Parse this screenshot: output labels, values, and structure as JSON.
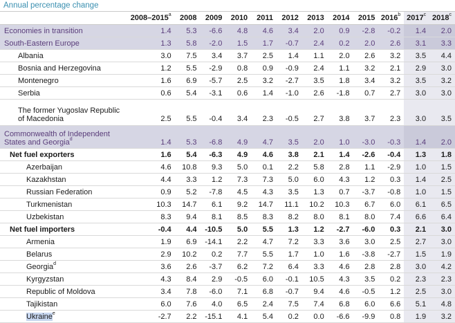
{
  "caption": "Annual percentage change",
  "headers": [
    "2008–2015",
    "2008",
    "2009",
    "2010",
    "2011",
    "2012",
    "2013",
    "2014",
    "2015",
    "2016",
    "2017",
    "2018"
  ],
  "header_notes": [
    "a",
    "",
    "",
    "",
    "",
    "",
    "",
    "",
    "",
    "b",
    "c",
    "c"
  ],
  "rows": [
    {
      "label": "Economies in transition",
      "note": "",
      "kind": "grp",
      "values": [
        "1.4",
        "5.3",
        "-6.6",
        "4.8",
        "4.6",
        "3.4",
        "2.0",
        "0.9",
        "-2.8",
        "-0.2",
        "1.4",
        "2.0"
      ]
    },
    {
      "label": "South-Eastern Europe",
      "note": "",
      "kind": "grp",
      "values": [
        "1.3",
        "5.8",
        "-2.0",
        "1.5",
        "1.7",
        "-0.7",
        "2.4",
        "0.2",
        "2.0",
        "2.6",
        "3.1",
        "3.3"
      ]
    },
    {
      "label": "Albania",
      "note": "",
      "kind": "item",
      "values": [
        "3.0",
        "7.5",
        "3.4",
        "3.7",
        "2.5",
        "1.4",
        "1.1",
        "2.0",
        "2.6",
        "3.2",
        "3.5",
        "4.4"
      ]
    },
    {
      "label": "Bosnia and Herzegovina",
      "note": "",
      "kind": "item",
      "values": [
        "1.2",
        "5.5",
        "-2.9",
        "0.8",
        "0.9",
        "-0.9",
        "2.4",
        "1.1",
        "3.2",
        "2.1",
        "2.9",
        "3.0"
      ]
    },
    {
      "label": "Montenegro",
      "note": "",
      "kind": "item",
      "values": [
        "1.6",
        "6.9",
        "-5.7",
        "2.5",
        "3.2",
        "-2.7",
        "3.5",
        "1.8",
        "3.4",
        "3.2",
        "3.5",
        "3.2"
      ]
    },
    {
      "label": "Serbia",
      "note": "",
      "kind": "item",
      "values": [
        "0.6",
        "5.4",
        "-3.1",
        "0.6",
        "1.4",
        "-1.0",
        "2.6",
        "-1.8",
        "0.7",
        "2.7",
        "3.0",
        "3.0"
      ]
    },
    {
      "label": "The former Yugoslav Republic",
      "label2": "of Macedonia",
      "note": "",
      "kind": "item-tall",
      "values": [
        "2.5",
        "5.5",
        "-0.4",
        "3.4",
        "2.3",
        "-0.5",
        "2.7",
        "3.8",
        "3.7",
        "2.3",
        "3.0",
        "3.5"
      ]
    },
    {
      "label": "Commonwealth of Independent",
      "label2": "States and Georgia",
      "note": "d",
      "kind": "grp-tall",
      "values": [
        "1.4",
        "5.3",
        "-6.8",
        "4.9",
        "4.7",
        "3.5",
        "2.0",
        "1.0",
        "-3.0",
        "-0.3",
        "1.4",
        "2.0"
      ]
    },
    {
      "label": "Net fuel exporters",
      "note": "",
      "kind": "bold",
      "values": [
        "1.6",
        "5.4",
        "-6.3",
        "4.9",
        "4.6",
        "3.8",
        "2.1",
        "1.4",
        "-2.6",
        "-0.4",
        "1.3",
        "1.8"
      ]
    },
    {
      "label": "Azerbaijan",
      "note": "",
      "kind": "sub",
      "values": [
        "4.6",
        "10.8",
        "9.3",
        "5.0",
        "0.1",
        "2.2",
        "5.8",
        "2.8",
        "1.1",
        "-2.9",
        "1.0",
        "1.5"
      ]
    },
    {
      "label": "Kazakhstan",
      "note": "",
      "kind": "sub",
      "values": [
        "4.4",
        "3.3",
        "1.2",
        "7.3",
        "7.3",
        "5.0",
        "6.0",
        "4.3",
        "1.2",
        "0.3",
        "1.4",
        "2.5"
      ]
    },
    {
      "label": "Russian Federation",
      "note": "",
      "kind": "sub",
      "values": [
        "0.9",
        "5.2",
        "-7.8",
        "4.5",
        "4.3",
        "3.5",
        "1.3",
        "0.7",
        "-3.7",
        "-0.8",
        "1.0",
        "1.5"
      ]
    },
    {
      "label": "Turkmenistan",
      "note": "",
      "kind": "sub",
      "values": [
        "10.3",
        "14.7",
        "6.1",
        "9.2",
        "14.7",
        "11.1",
        "10.2",
        "10.3",
        "6.7",
        "6.0",
        "6.1",
        "6.5"
      ]
    },
    {
      "label": "Uzbekistan",
      "note": "",
      "kind": "sub",
      "values": [
        "8.3",
        "9.4",
        "8.1",
        "8.5",
        "8.3",
        "8.2",
        "8.0",
        "8.1",
        "8.0",
        "7.4",
        "6.6",
        "6.4"
      ]
    },
    {
      "label": "Net fuel importers",
      "note": "",
      "kind": "bold",
      "values": [
        "-0.4",
        "4.4",
        "-10.5",
        "5.0",
        "5.5",
        "1.3",
        "1.2",
        "-2.7",
        "-6.0",
        "0.3",
        "2.1",
        "3.0"
      ]
    },
    {
      "label": "Armenia",
      "note": "",
      "kind": "sub",
      "values": [
        "1.9",
        "6.9",
        "-14.1",
        "2.2",
        "4.7",
        "7.2",
        "3.3",
        "3.6",
        "3.0",
        "2.5",
        "2.7",
        "3.0"
      ]
    },
    {
      "label": "Belarus",
      "note": "",
      "kind": "sub",
      "values": [
        "2.9",
        "10.2",
        "0.2",
        "7.7",
        "5.5",
        "1.7",
        "1.0",
        "1.6",
        "-3.8",
        "-2.7",
        "1.5",
        "1.9"
      ]
    },
    {
      "label": "Georgia",
      "note": "d",
      "kind": "sub",
      "values": [
        "3.6",
        "2.6",
        "-3.7",
        "6.2",
        "7.2",
        "6.4",
        "3.3",
        "4.6",
        "2.8",
        "2.8",
        "3.0",
        "4.2"
      ]
    },
    {
      "label": "Kyrgyzstan",
      "note": "",
      "kind": "sub",
      "values": [
        "4.3",
        "8.4",
        "2.9",
        "-0.5",
        "6.0",
        "-0.1",
        "10.5",
        "4.3",
        "3.5",
        "0.2",
        "2.3",
        "2.3"
      ]
    },
    {
      "label": "Republic of Moldova",
      "note": "",
      "kind": "sub",
      "values": [
        "3.4",
        "7.8",
        "-6.0",
        "7.1",
        "6.8",
        "-0.7",
        "9.4",
        "4.6",
        "-0.5",
        "1.2",
        "2.5",
        "3.0"
      ]
    },
    {
      "label": "Tajikistan",
      "note": "",
      "kind": "sub",
      "values": [
        "6.0",
        "7.6",
        "4.0",
        "6.5",
        "2.4",
        "7.5",
        "7.4",
        "6.8",
        "6.0",
        "6.6",
        "5.1",
        "4.8"
      ]
    },
    {
      "label": "Ukraine",
      "note": "e",
      "kind": "sub-hl",
      "values": [
        "-2.7",
        "2.2",
        "-15.1",
        "4.1",
        "5.4",
        "0.2",
        "0.0",
        "-6.6",
        "-9.9",
        "0.8",
        "1.9",
        "3.2"
      ]
    }
  ]
}
